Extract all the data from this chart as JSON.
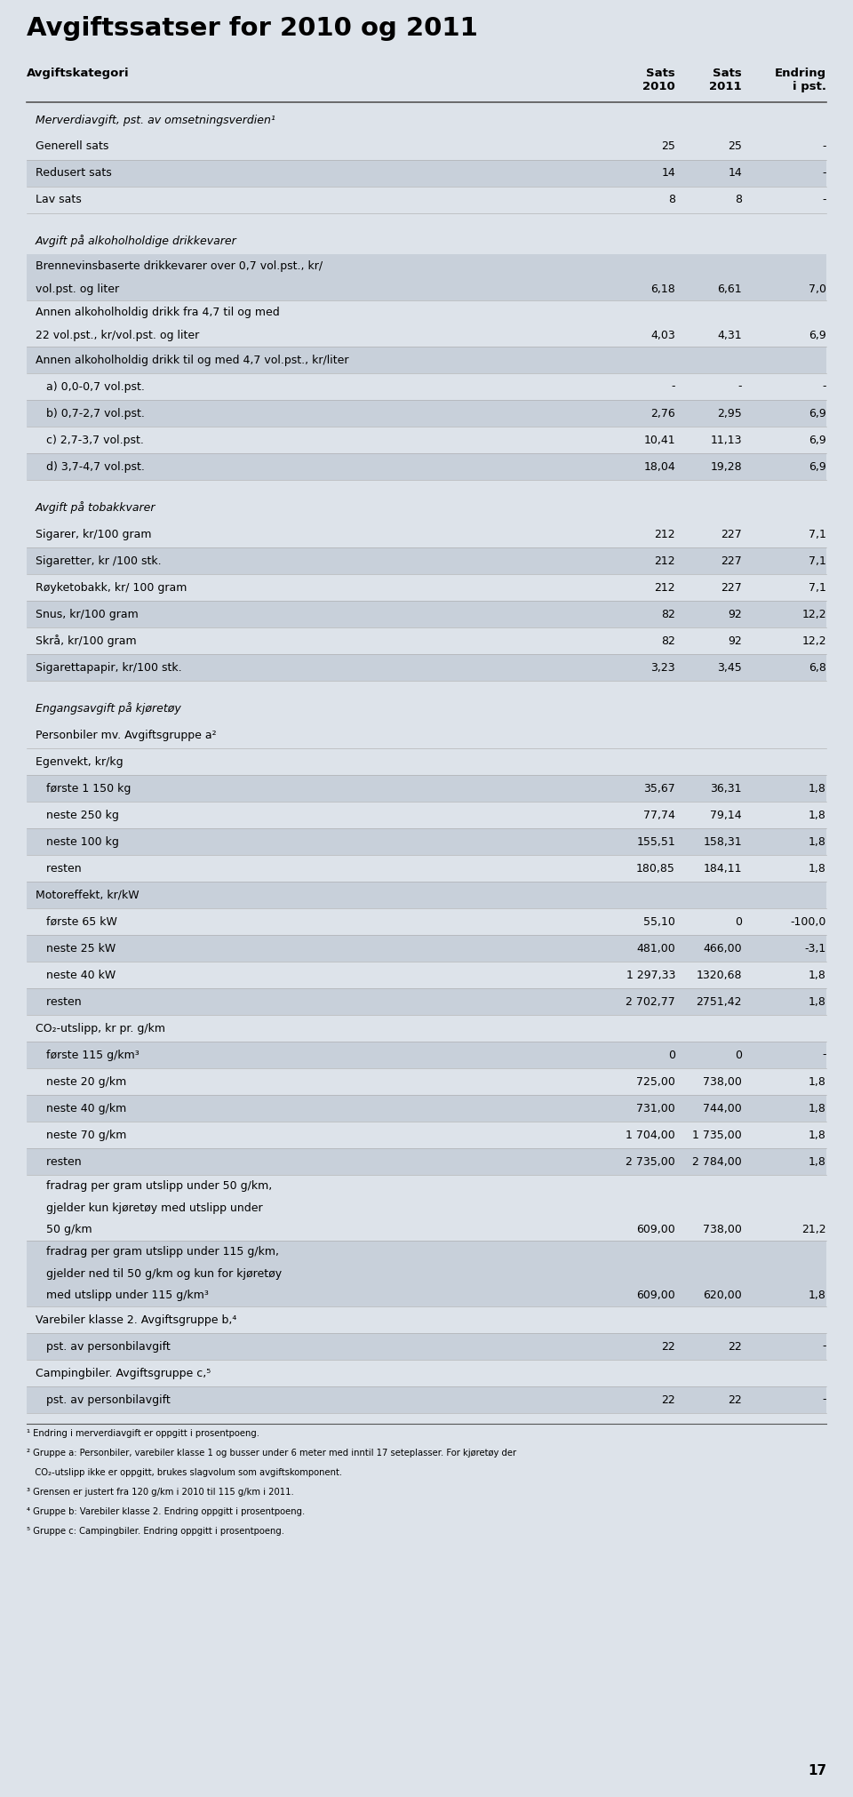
{
  "title": "Avgiftssatser for 2010 og 2011",
  "bg_color": "#dde3ea",
  "dark_row_color": "#c8d0da",
  "rows": [
    {
      "text": "Merverdiavgift, pst. av omsetningsverdien¹",
      "col1": "",
      "col2": "",
      "col3": "",
      "type": "section_header"
    },
    {
      "text": "Generell sats",
      "col1": "25",
      "col2": "25",
      "col3": "-",
      "type": "data_light"
    },
    {
      "text": "Redusert sats",
      "col1": "14",
      "col2": "14",
      "col3": "-",
      "type": "data_dark"
    },
    {
      "text": "Lav sats",
      "col1": "8",
      "col2": "8",
      "col3": "-",
      "type": "data_light"
    },
    {
      "text": "",
      "col1": "",
      "col2": "",
      "col3": "",
      "type": "spacer"
    },
    {
      "text": "Avgift på alkoholholdige drikkevarer",
      "col1": "",
      "col2": "",
      "col3": "",
      "type": "section_header"
    },
    {
      "text": "Brennevinsbaserte drikkevarer over 0,7 vol.pst., kr/\nvol.pst. og liter",
      "col1": "6,18",
      "col2": "6,61",
      "col3": "7,0",
      "type": "data_dark"
    },
    {
      "text": "Annen alkoholholdig drikk fra 4,7 til og med\n22 vol.pst., kr/vol.pst. og liter",
      "col1": "4,03",
      "col2": "4,31",
      "col3": "6,9",
      "type": "data_light"
    },
    {
      "text": "Annen alkoholholdig drikk til og med 4,7 vol.pst., kr/liter",
      "col1": "",
      "col2": "",
      "col3": "",
      "type": "data_dark"
    },
    {
      "text": "   a) 0,0-0,7 vol.pst.",
      "col1": "-",
      "col2": "-",
      "col3": "-",
      "type": "data_light"
    },
    {
      "text": "   b) 0,7-2,7 vol.pst.",
      "col1": "2,76",
      "col2": "2,95",
      "col3": "6,9",
      "type": "data_dark"
    },
    {
      "text": "   c) 2,7-3,7 vol.pst.",
      "col1": "10,41",
      "col2": "11,13",
      "col3": "6,9",
      "type": "data_light"
    },
    {
      "text": "   d) 3,7-4,7 vol.pst.",
      "col1": "18,04",
      "col2": "19,28",
      "col3": "6,9",
      "type": "data_dark"
    },
    {
      "text": "",
      "col1": "",
      "col2": "",
      "col3": "",
      "type": "spacer"
    },
    {
      "text": "Avgift på tobakkvarer",
      "col1": "",
      "col2": "",
      "col3": "",
      "type": "section_header"
    },
    {
      "text": "Sigarer, kr/100 gram",
      "col1": "212",
      "col2": "227",
      "col3": "7,1",
      "type": "data_light"
    },
    {
      "text": "Sigaretter, kr /100 stk.",
      "col1": "212",
      "col2": "227",
      "col3": "7,1",
      "type": "data_dark"
    },
    {
      "text": "Røyketobakk, kr/ 100 gram",
      "col1": "212",
      "col2": "227",
      "col3": "7,1",
      "type": "data_light"
    },
    {
      "text": "Snus, kr/100 gram",
      "col1": "82",
      "col2": "92",
      "col3": "12,2",
      "type": "data_dark"
    },
    {
      "text": "Skrå, kr/100 gram",
      "col1": "82",
      "col2": "92",
      "col3": "12,2",
      "type": "data_light"
    },
    {
      "text": "Sigarettapapir, kr/100 stk.",
      "col1": "3,23",
      "col2": "3,45",
      "col3": "6,8",
      "type": "data_dark"
    },
    {
      "text": "",
      "col1": "",
      "col2": "",
      "col3": "",
      "type": "spacer"
    },
    {
      "text": "Engangsavgift på kjøretøy",
      "col1": "",
      "col2": "",
      "col3": "",
      "type": "section_header"
    },
    {
      "text": "Personbiler mv. Avgiftsgruppe a²",
      "col1": "",
      "col2": "",
      "col3": "",
      "type": "data_light"
    },
    {
      "text": "Egenvekt, kr/kg",
      "col1": "",
      "col2": "",
      "col3": "",
      "type": "data_light"
    },
    {
      "text": "   første 1 150 kg",
      "col1": "35,67",
      "col2": "36,31",
      "col3": "1,8",
      "type": "data_dark"
    },
    {
      "text": "   neste 250 kg",
      "col1": "77,74",
      "col2": "79,14",
      "col3": "1,8",
      "type": "data_light"
    },
    {
      "text": "   neste 100 kg",
      "col1": "155,51",
      "col2": "158,31",
      "col3": "1,8",
      "type": "data_dark"
    },
    {
      "text": "   resten",
      "col1": "180,85",
      "col2": "184,11",
      "col3": "1,8",
      "type": "data_light"
    },
    {
      "text": "Motoreffekt, kr/kW",
      "col1": "",
      "col2": "",
      "col3": "",
      "type": "data_dark"
    },
    {
      "text": "   første 65 kW",
      "col1": "55,10",
      "col2": "0",
      "col3": "-100,0",
      "type": "data_light"
    },
    {
      "text": "   neste 25 kW",
      "col1": "481,00",
      "col2": "466,00",
      "col3": "-3,1",
      "type": "data_dark"
    },
    {
      "text": "   neste 40 kW",
      "col1": "1 297,33",
      "col2": "1320,68",
      "col3": "1,8",
      "type": "data_light"
    },
    {
      "text": "   resten",
      "col1": "2 702,77",
      "col2": "2751,42",
      "col3": "1,8",
      "type": "data_dark"
    },
    {
      "text": "CO₂-utslipp, kr pr. g/km",
      "col1": "",
      "col2": "",
      "col3": "",
      "type": "data_light"
    },
    {
      "text": "   første 115 g/km³",
      "col1": "0",
      "col2": "0",
      "col3": "-",
      "type": "data_dark"
    },
    {
      "text": "   neste 20 g/km",
      "col1": "725,00",
      "col2": "738,00",
      "col3": "1,8",
      "type": "data_light"
    },
    {
      "text": "   neste 40 g/km",
      "col1": "731,00",
      "col2": "744,00",
      "col3": "1,8",
      "type": "data_dark"
    },
    {
      "text": "   neste 70 g/km",
      "col1": "1 704,00",
      "col2": "1 735,00",
      "col3": "1,8",
      "type": "data_light"
    },
    {
      "text": "   resten",
      "col1": "2 735,00",
      "col2": "2 784,00",
      "col3": "1,8",
      "type": "data_dark"
    },
    {
      "text": "   fradrag per gram utslipp under 50 g/km,\n   gjelder kun kjøretøy med utslipp under\n   50 g/km",
      "col1": "609,00",
      "col2": "738,00",
      "col3": "21,2",
      "type": "data_light"
    },
    {
      "text": "   fradrag per gram utslipp under 115 g/km,\n   gjelder ned til 50 g/km og kun for kjøretøy\n   med utslipp under 115 g/km³",
      "col1": "609,00",
      "col2": "620,00",
      "col3": "1,8",
      "type": "data_dark"
    },
    {
      "text": "Varebiler klasse 2. Avgiftsgruppe b,⁴",
      "col1": "",
      "col2": "",
      "col3": "",
      "type": "data_light"
    },
    {
      "text": "   pst. av personbilavgift",
      "col1": "22",
      "col2": "22",
      "col3": "-",
      "type": "data_dark"
    },
    {
      "text": "Campingbiler. Avgiftsgruppe c,⁵",
      "col1": "",
      "col2": "",
      "col3": "",
      "type": "data_light"
    },
    {
      "text": "   pst. av personbilavgift",
      "col1": "22",
      "col2": "22",
      "col3": "-",
      "type": "data_dark"
    }
  ],
  "footnotes": [
    "¹ Endring i merverdiavgift er oppgitt i prosentpoeng.",
    "² Gruppe a: Personbiler, varebiler klasse 1 og busser under 6 meter med inntil 17 seteplasser. For kjøretøy der",
    "   CO₂-utslipp ikke er oppgitt, brukes slagvolum som avgiftskomponent.",
    "³ Grensen er justert fra 120 g/km i 2010 til 115 g/km i 2011.",
    "⁴ Gruppe b: Varebiler klasse 2. Endring oppgitt i prosentpoeng.",
    "⁵ Gruppe c: Campingbiler. Endring oppgitt i prosentpoeng."
  ],
  "page_number": "17"
}
